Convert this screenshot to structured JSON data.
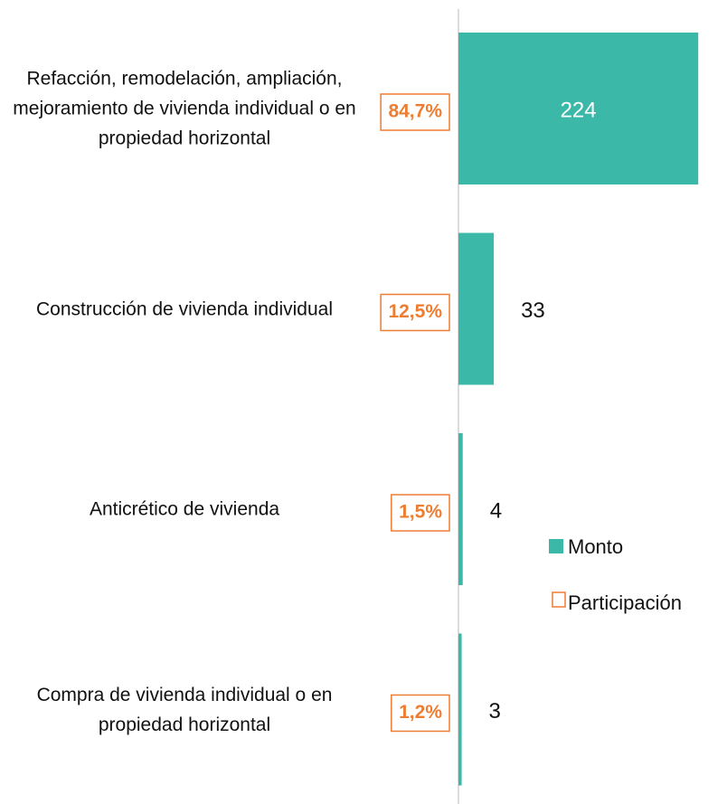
{
  "chart_data": {
    "type": "bar",
    "orientation": "horizontal",
    "categories": [
      "Refacción, remodelación, ampliación, mejoramiento de vivienda individual o en propiedad horizontal",
      "Construcción de vivienda individual",
      "Anticrético de vivienda",
      "Compra de vivienda individual o en propiedad horizontal"
    ],
    "series": [
      {
        "name": "Monto",
        "color": "#3cb8a9",
        "values": [
          224,
          33,
          4,
          3
        ]
      },
      {
        "name": "Participación",
        "color": "#ed7d31",
        "values": [
          84.7,
          12.5,
          1.5,
          1.2
        ],
        "value_labels": [
          "84,7%",
          "12,5%",
          "1,5%",
          "1,2%"
        ]
      }
    ],
    "xlim": [
      0,
      250
    ],
    "legend": "right"
  }
}
